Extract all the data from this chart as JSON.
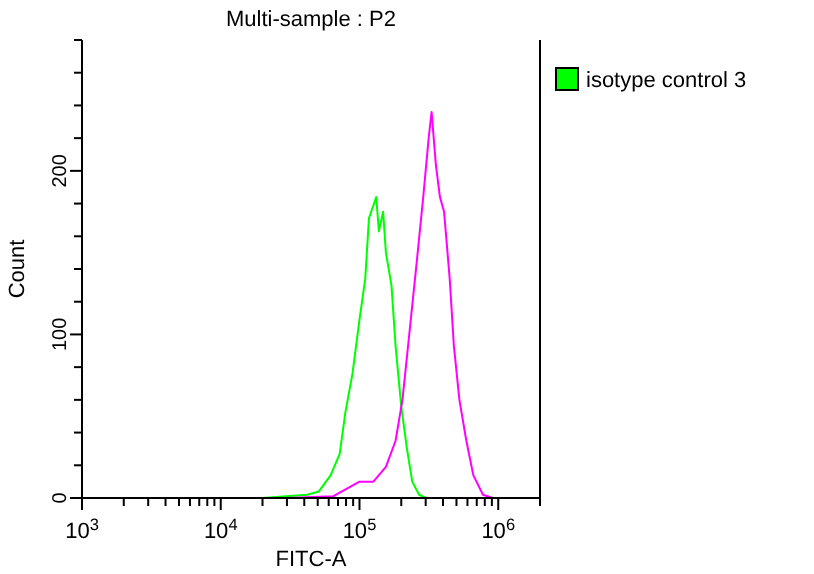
{
  "chart_data": {
    "type": "line",
    "title": "Multi-sample : P2",
    "xlabel": "FITC-A",
    "ylabel": "Count",
    "log": "x",
    "legend": "right",
    "grid": false,
    "marker": "none",
    "line_style": "solid",
    "xlim": [
      1000,
      2000000
    ],
    "xticks": [
      {
        "value": 1000,
        "label": "10$^{3}$"
      },
      {
        "value": 2000,
        "label": null
      },
      {
        "value": 3000,
        "label": null
      },
      {
        "value": 4000,
        "label": null
      },
      {
        "value": 5000,
        "label": null
      },
      {
        "value": 6000,
        "label": null
      },
      {
        "value": 7000,
        "label": null
      },
      {
        "value": 8000,
        "label": null
      },
      {
        "value": 9000,
        "label": null
      },
      {
        "value": 10000,
        "label": "10$^{4}$"
      },
      {
        "value": 20000,
        "label": null
      },
      {
        "value": 30000,
        "label": null
      },
      {
        "value": 40000,
        "label": null
      },
      {
        "value": 50000,
        "label": null
      },
      {
        "value": 60000,
        "label": null
      },
      {
        "value": 70000,
        "label": null
      },
      {
        "value": 80000,
        "label": null
      },
      {
        "value": 90000,
        "label": null
      },
      {
        "value": 100000,
        "label": "10$^{5}$"
      },
      {
        "value": 200000,
        "label": null
      },
      {
        "value": 300000,
        "label": null
      },
      {
        "value": 400000,
        "label": null
      },
      {
        "value": 500000,
        "label": null
      },
      {
        "value": 600000,
        "label": null
      },
      {
        "value": 700000,
        "label": null
      },
      {
        "value": 800000,
        "label": null
      },
      {
        "value": 900000,
        "label": null
      },
      {
        "value": 1000000,
        "label": "10$^{6}$"
      },
      {
        "value": 2000000,
        "label": null
      }
    ],
    "ylim": [
      0,
      280
    ],
    "yticks": [
      0,
      {
        "value": 20,
        "label": null
      },
      {
        "value": 40,
        "label": null
      },
      {
        "value": 60,
        "label": null
      },
      {
        "value": 80,
        "label": null
      },
      100,
      {
        "value": 120,
        "label": null
      },
      {
        "value": 140,
        "label": null
      },
      {
        "value": 160,
        "label": null
      },
      {
        "value": 180,
        "label": null
      },
      200,
      {
        "value": 220,
        "label": null
      },
      {
        "value": 240,
        "label": null
      },
      {
        "value": 260,
        "label": null
      },
      {
        "value": 280,
        "label": null
      }
    ],
    "series": [
      {
        "name": "isotype control 3",
        "color": "#00ff00",
        "x": [
          20000,
          42000,
          51000,
          62000,
          72000,
          79000,
          89000,
          100000,
          110000,
          117000,
          126000,
          132000,
          138000,
          148000,
          155000,
          170000,
          182000,
          200000,
          219000,
          240000,
          269000,
          302000
        ],
        "values": [
          0,
          2,
          4,
          14,
          27,
          52,
          76,
          109,
          134,
          171,
          179,
          184,
          163,
          175,
          150,
          130,
          93,
          56,
          31,
          10,
          2,
          0
        ]
      },
      {
        "color": "#ff00ff",
        "x": [
          29500,
          64500,
          100000,
          126000,
          155000,
          182000,
          204000,
          229000,
          257000,
          288000,
          316000,
          331000,
          355000,
          380000,
          407000,
          447000,
          479000,
          525000,
          589000,
          661000,
          776000,
          912000
        ],
        "values": [
          0,
          1,
          10,
          10,
          19,
          35,
          60,
          101,
          142,
          184,
          221,
          236,
          204,
          184,
          175,
          134,
          93,
          60,
          35,
          14,
          2,
          0
        ]
      }
    ]
  }
}
